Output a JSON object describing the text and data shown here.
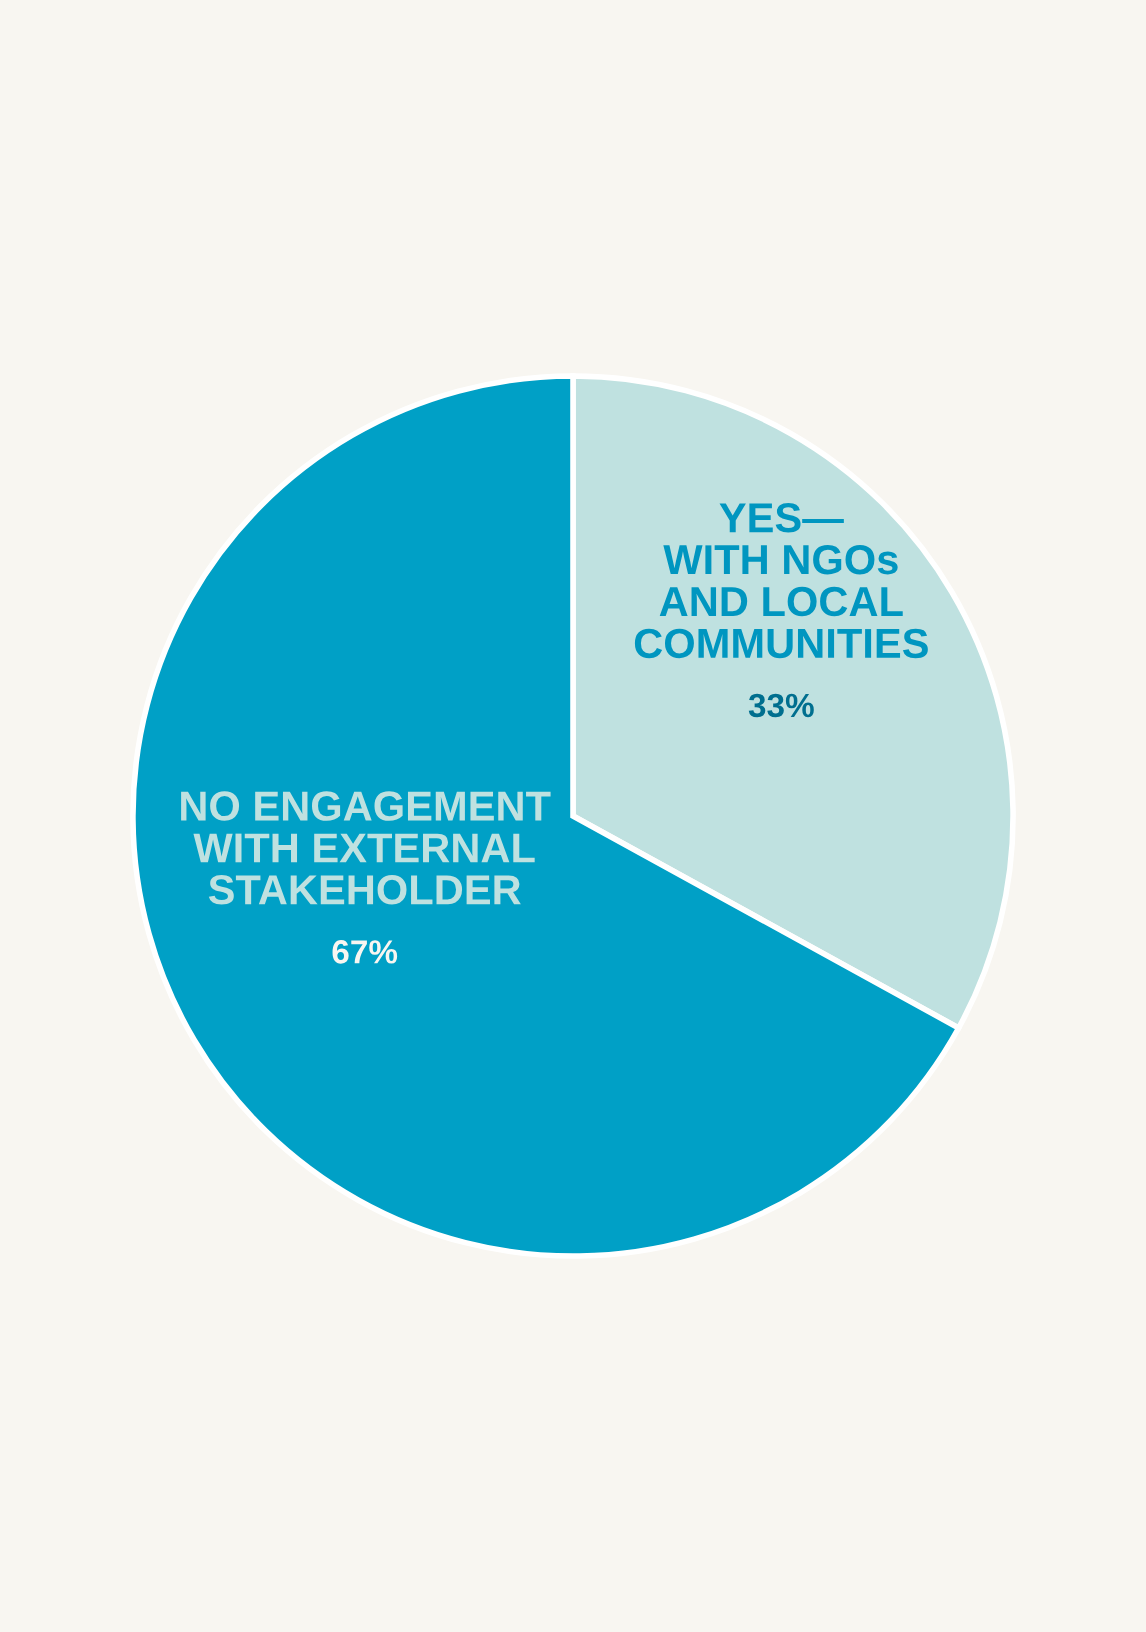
{
  "chart_data": {
    "type": "pie",
    "categories": [
      "YES—\nWITH NGOs\nAND LOCAL\nCOMMUNITIES",
      "NO ENGAGEMENT\nWITH EXTERNAL\nSTAKEHOLDER"
    ],
    "values": [
      33,
      67
    ],
    "value_labels": [
      "33%",
      "67%"
    ],
    "colors": [
      "#bfe1e0",
      "#00a0c6"
    ],
    "legend": false
  }
}
